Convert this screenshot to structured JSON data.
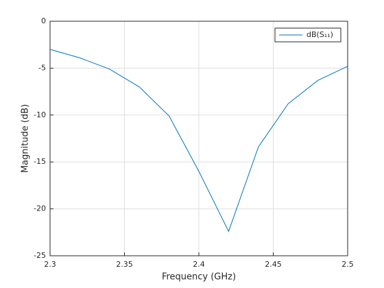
{
  "chart_data": {
    "type": "line",
    "x": [
      2.3,
      2.32,
      2.34,
      2.36,
      2.38,
      2.4,
      2.42,
      2.44,
      2.46,
      2.48,
      2.5
    ],
    "series": [
      {
        "name": "dB(S₁₁)",
        "color": "#0072bd",
        "values": [
          -3.0,
          -3.9,
          -5.1,
          -7.0,
          -10.1,
          -16.0,
          -22.4,
          -13.4,
          -8.8,
          -6.3,
          -4.8
        ]
      }
    ],
    "xlabel": "Frequency (GHz)",
    "ylabel": "Magnitude (dB)",
    "xlim": [
      2.3,
      2.5
    ],
    "xticks": [
      2.3,
      2.35,
      2.4,
      2.45,
      2.5
    ],
    "ylim": [
      -25,
      0
    ],
    "yticks": [
      -25,
      -20,
      -15,
      -10,
      -5,
      0
    ],
    "grid": true,
    "legend": "upper-right"
  }
}
